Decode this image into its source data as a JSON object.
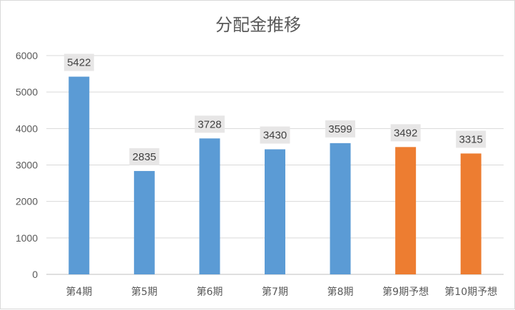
{
  "chart_data": {
    "type": "bar",
    "title": "分配金推移",
    "categories": [
      "第4期",
      "第5期",
      "第6期",
      "第7期",
      "第8期",
      "第9期予想",
      "第10期予想"
    ],
    "values": [
      5422,
      2835,
      3728,
      3430,
      3599,
      3492,
      3315
    ],
    "point_colors": [
      "#5b9bd5",
      "#5b9bd5",
      "#5b9bd5",
      "#5b9bd5",
      "#5b9bd5",
      "#ed7d31",
      "#ed7d31"
    ],
    "ylim": [
      0,
      6000
    ],
    "yticks": [
      0,
      1000,
      2000,
      3000,
      4000,
      5000,
      6000
    ],
    "grid": true,
    "legend": "none",
    "data_labels": true
  }
}
